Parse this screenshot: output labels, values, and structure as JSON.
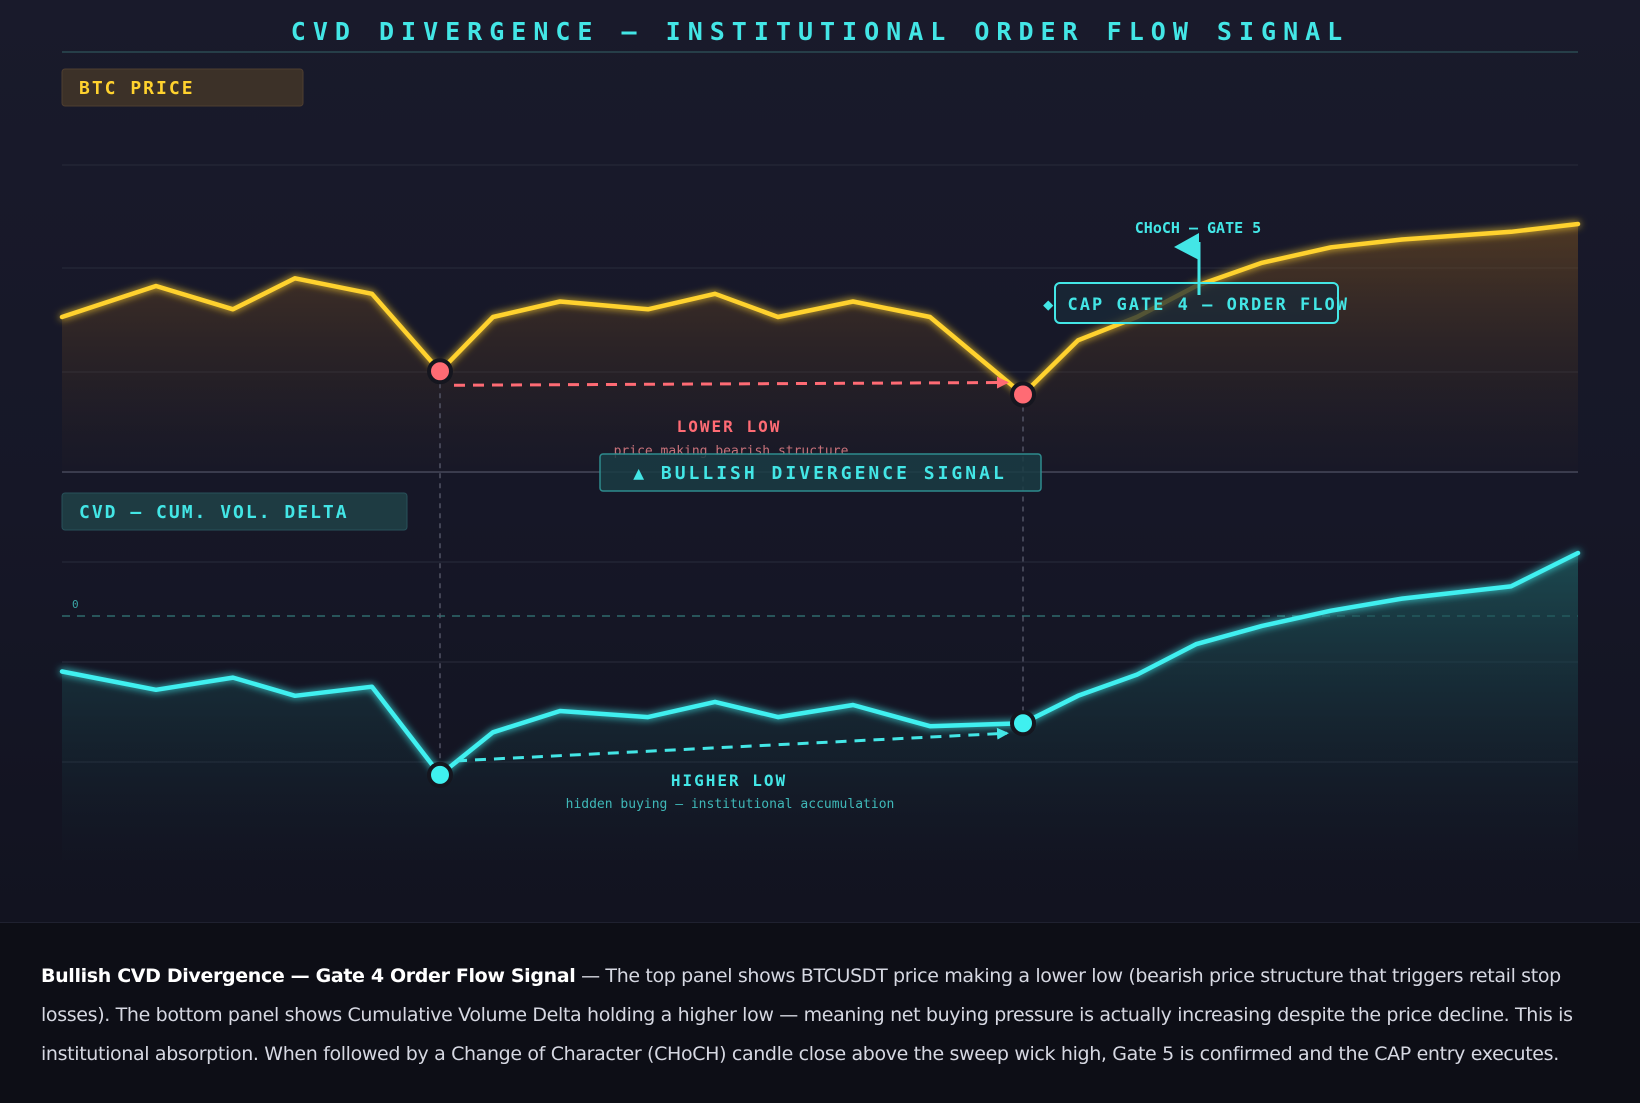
{
  "header": {
    "title": "CVD DIVERGENCE — INSTITUTIONAL ORDER FLOW SIGNAL"
  },
  "colors": {
    "price_line": "#ffd22e",
    "cvd_line": "#3ff0f0",
    "bearish": "#ff6b74",
    "accent": "#43e6e6"
  },
  "panels": {
    "price_label": "BTC PRICE",
    "cvd_label": "CVD — CUM. VOL. DELTA"
  },
  "annotations": {
    "lower_low": "LOWER LOW",
    "lower_low_sub": "price making bearish structure",
    "bullish_signal": "▲ BULLISH DIVERGENCE SIGNAL",
    "cap_gate": "◆ CAP GATE 4 — ORDER FLOW",
    "choch": "CHoCH — GATE 5",
    "higher_low": "HIGHER LOW",
    "higher_low_sub": "hidden buying — institutional accumulation",
    "zero_label": "0"
  },
  "chart_data": [
    {
      "type": "line",
      "panel": "top",
      "series": [
        {
          "values": [
            50,
            54,
            51,
            55,
            53,
            43,
            50,
            52,
            51,
            53,
            50,
            52,
            50,
            40,
            47,
            50,
            54,
            57,
            59,
            60,
            61,
            62
          ]
        }
      ],
      "points": 22,
      "ylim": [
        30,
        70
      ],
      "grid": true,
      "highlights": [
        {
          "index": 5,
          "label": "LOWER LOW"
        },
        {
          "index": 13,
          "label": "LOWER LOW"
        }
      ]
    },
    {
      "type": "line",
      "panel": "bottom",
      "series": [
        {
          "values": [
            0.2,
            -0.4,
            0,
            -0.6,
            -0.3,
            -3.2,
            -1.8,
            -1.1,
            -1.3,
            -0.8,
            -1.3,
            -0.9,
            -1.6,
            -1.5,
            -0.6,
            0.1,
            1.1,
            1.7,
            2.2,
            2.6,
            3.0,
            4.1
          ]
        }
      ],
      "points": 22,
      "ylim": [
        -6,
        6.5
      ],
      "zero_line": true,
      "grid": true,
      "highlights": [
        {
          "index": 5,
          "label": "HIGHER LOW"
        },
        {
          "index": 13,
          "label": "HIGHER LOW"
        }
      ]
    }
  ],
  "caption": {
    "bold": "Bullish CVD Divergence — Gate 4 Order Flow Signal",
    "text": " — The top panel shows BTCUSDT price making a lower low (bearish price structure that triggers retail stop losses). The bottom panel shows Cumulative Volume Delta holding a higher low — meaning net buying pressure is actually increasing despite the price decline. This is institutional absorption. When followed by a Change of Character (CHoCH) candle close above the sweep wick high, Gate 5 is confirmed and the CAP entry executes."
  }
}
